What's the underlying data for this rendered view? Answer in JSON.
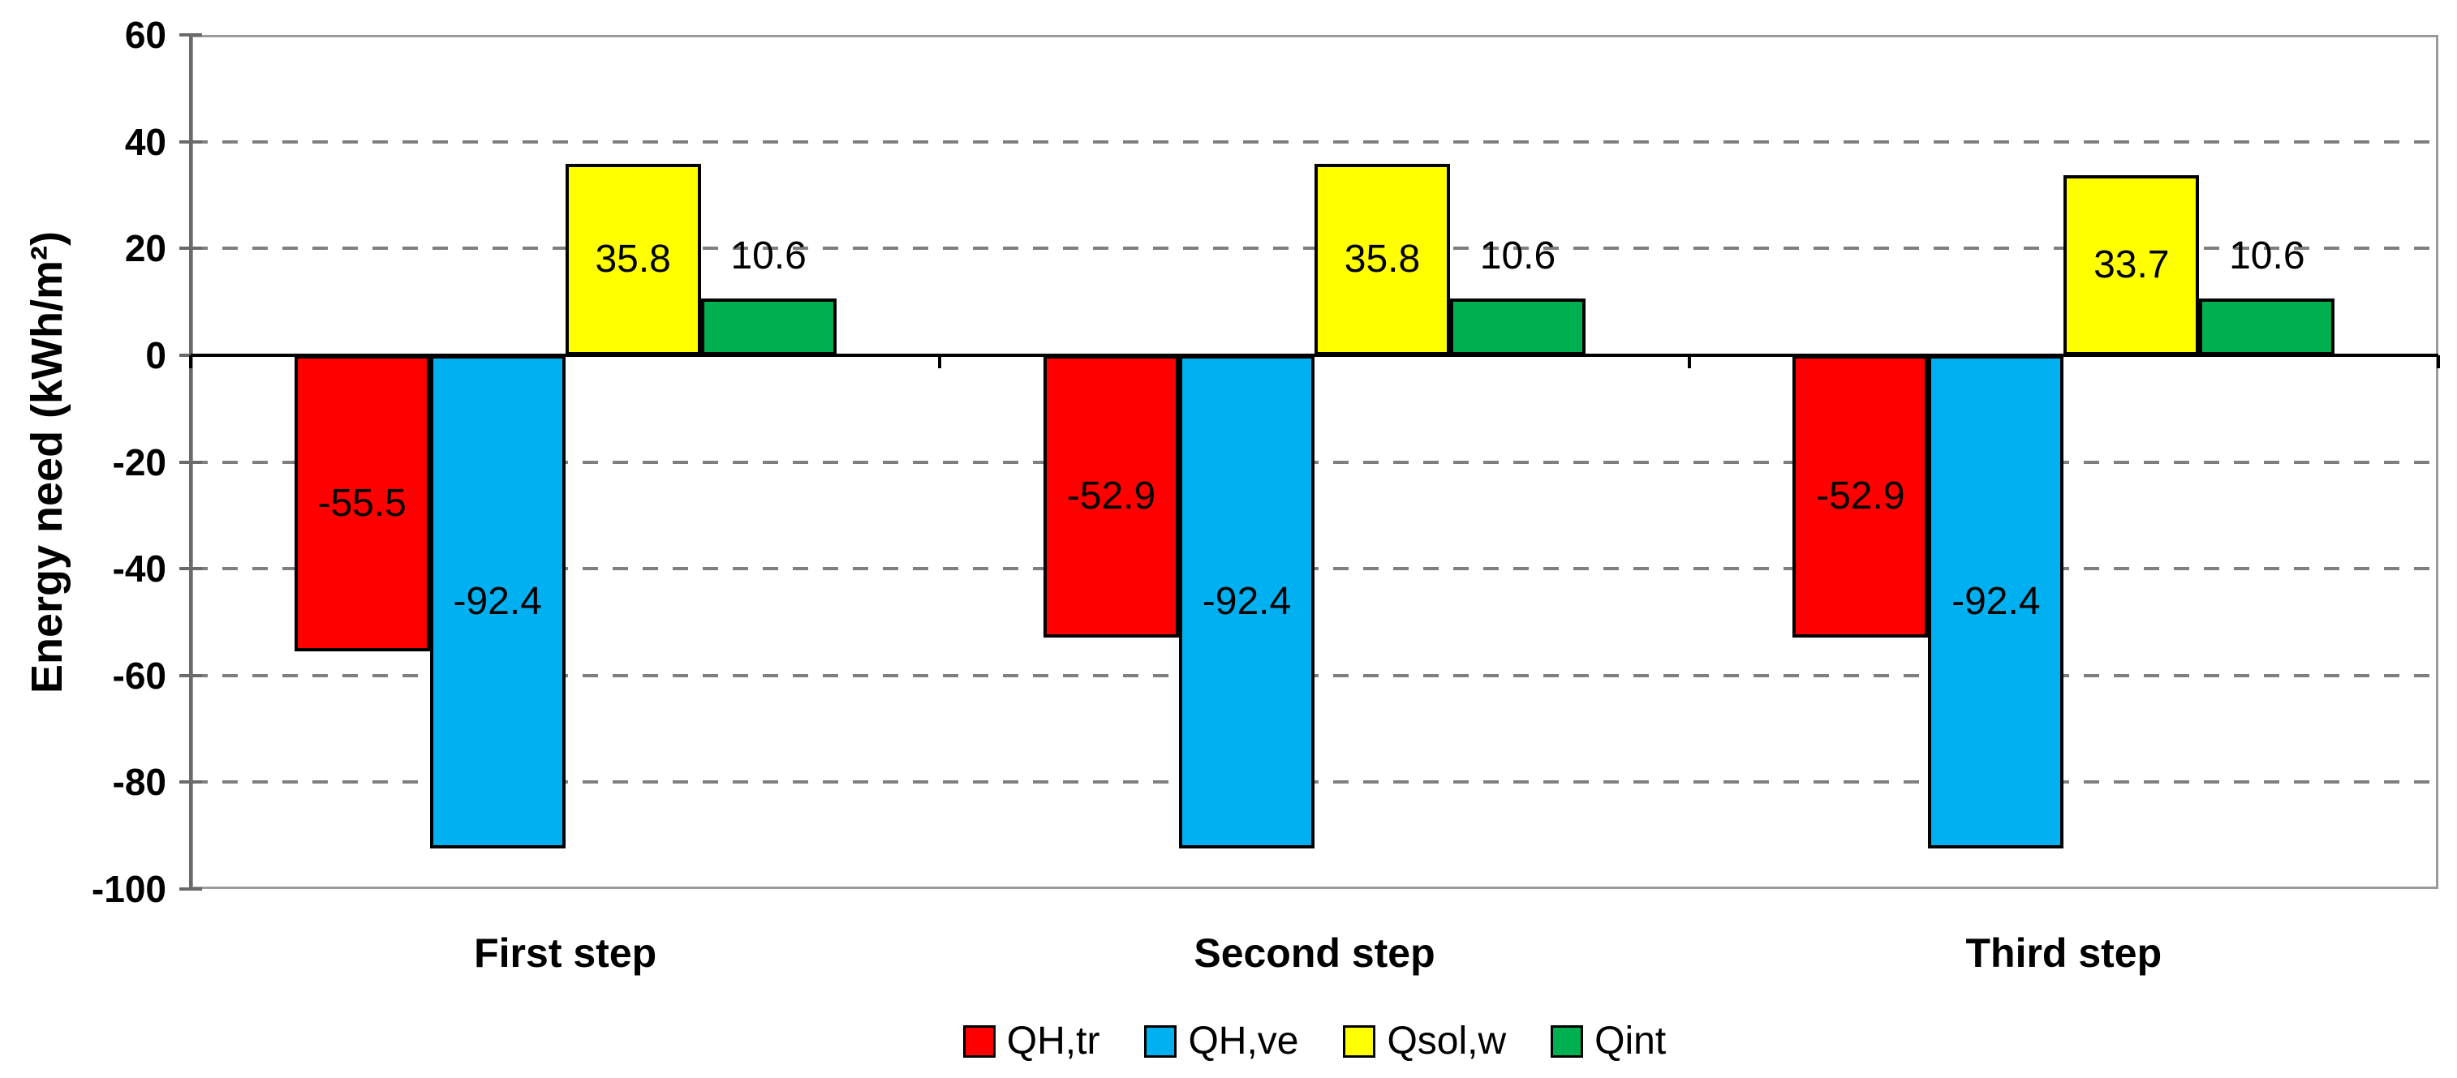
{
  "chart_data": {
    "type": "bar",
    "title": "",
    "xlabel": "",
    "ylabel": "Energy need (kWh/m²)",
    "categories": [
      "First step",
      "Second step",
      "Third step"
    ],
    "series": [
      {
        "name": "QH,tr",
        "color": "#fe0000",
        "values": [
          -55.5,
          -52.9,
          -52.9
        ],
        "label_position": "center"
      },
      {
        "name": "QH,ve",
        "color": "#00b0f0",
        "values": [
          -92.4,
          -92.4,
          -92.4
        ],
        "label_position": "center"
      },
      {
        "name": "Qsol,w",
        "color": "#ffff00",
        "values": [
          35.8,
          35.8,
          33.7
        ],
        "label_position": "center"
      },
      {
        "name": "Qint",
        "color": "#00b050",
        "values": [
          10.6,
          10.6,
          10.6
        ],
        "label_position": "outside-end"
      }
    ],
    "ylim": [
      -100,
      60
    ],
    "ytick_step": 20,
    "yticks": [
      60,
      40,
      20,
      0,
      -20,
      -40,
      -60,
      -80,
      -100
    ],
    "grid": "dashed-horizontal",
    "data_labels": true,
    "label_decimals": 1,
    "legend_position": "bottom"
  },
  "style": {
    "gridline_color": "#7f7f7f",
    "plot_border_color": "#9a9a9a",
    "axis_line_color": "#6a6a6a",
    "zero_line_color": "#000000",
    "bar_border_color": "#000000",
    "text_color": "#000000",
    "background": "#ffffff"
  }
}
